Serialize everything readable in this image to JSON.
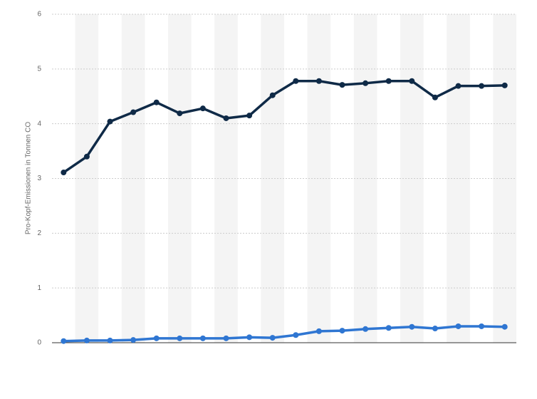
{
  "chart_data": {
    "type": "line",
    "y_label": "Pro-Kopf-Emissionen in Tonnen CO",
    "categories": [
      null,
      null,
      null,
      null,
      null,
      null,
      null,
      null,
      null,
      null,
      null,
      null,
      null,
      null,
      null,
      null,
      null,
      null,
      null,
      null
    ],
    "series": [
      {
        "color": "#0f2a47",
        "values": [
          3.11,
          3.4,
          4.04,
          4.21,
          4.39,
          4.19,
          4.28,
          4.1,
          4.15,
          4.52,
          4.78,
          4.78,
          4.71,
          4.74,
          4.78,
          4.78,
          4.48,
          4.69,
          4.69,
          4.7
        ]
      },
      {
        "color": "#2f76d2",
        "values": [
          0.03,
          0.04,
          0.04,
          0.05,
          0.08,
          0.08,
          0.08,
          0.08,
          0.1,
          0.09,
          0.14,
          0.21,
          0.22,
          0.25,
          0.27,
          0.29,
          0.26,
          0.3,
          0.3,
          0.29
        ]
      }
    ],
    "ylim": [
      0,
      6
    ],
    "yticks": [
      0,
      1,
      2,
      3,
      4,
      5,
      6
    ],
    "grid": true
  }
}
